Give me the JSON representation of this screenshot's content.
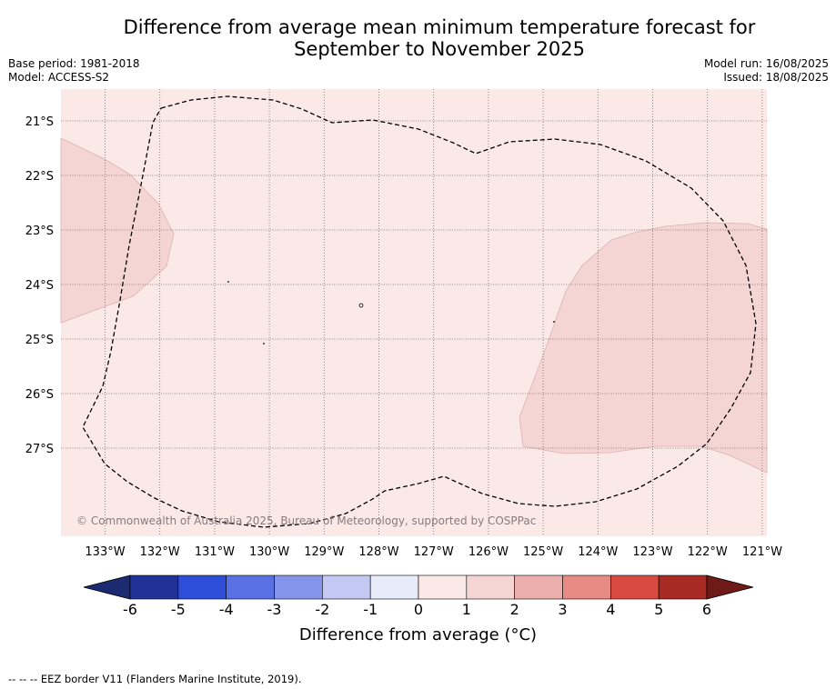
{
  "title_line1": "Difference from average mean minimum temperature forecast for",
  "title_line2": "September to November 2025",
  "base_period": "Base period: 1981-2018",
  "model": "Model: ACCESS-S2",
  "model_run": "Model run: 16/08/2025",
  "issued": "Issued: 18/08/2025",
  "copyright": "© Commonwealth of Australia 2025, Bureau of Meteorology, supported by COSPPac",
  "footnote": "-- -- -- EEZ border V11 (Flanders Marine Institute, 2019).",
  "colorbar_label": "Difference from average (°C)",
  "colors": {
    "background": "#fbe9e8",
    "anomaly_1_2": "#f4d5d4",
    "grid": "#7d6b6b"
  },
  "chart_data": {
    "type": "heatmap",
    "title": "Difference from average mean minimum temperature forecast for September to November 2025",
    "x_ticks": [
      "133°W",
      "132°W",
      "131°W",
      "130°W",
      "129°W",
      "128°W",
      "127°W",
      "126°W",
      "125°W",
      "124°W",
      "123°W",
      "122°W",
      "121°W"
    ],
    "y_ticks": [
      "21°S",
      "22°S",
      "23°S",
      "24°S",
      "25°S",
      "26°S",
      "27°S"
    ],
    "x_range": [
      -133.8,
      -121.1
    ],
    "y_range": [
      -28.3,
      -20.4
    ],
    "colorbar": {
      "ticks": [
        "-6",
        "-5",
        "-4",
        "-3",
        "-2",
        "-1",
        "0",
        "1",
        "2",
        "3",
        "4",
        "5",
        "6"
      ],
      "colors": [
        "#223195",
        "#2e4dd9",
        "#5a71e4",
        "#8595ec",
        "#c3c9f3",
        "#e8ebfa",
        "#fbe9e8",
        "#f4d5d4",
        "#ecaeaa",
        "#e78a84",
        "#d84a42",
        "#a92a22"
      ],
      "under_color": "#1c2a72",
      "over_color": "#6e1a16",
      "label": "Difference from average (°C)"
    }
  }
}
